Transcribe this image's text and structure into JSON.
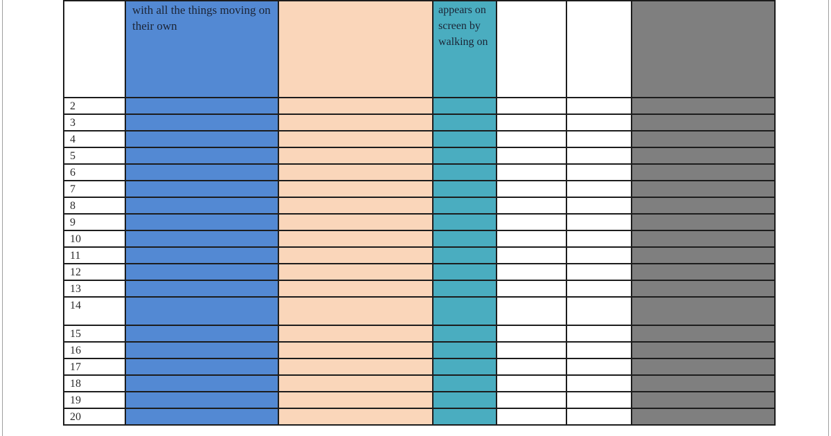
{
  "table": {
    "headers": {
      "num": "",
      "col_blue": "with all the things moving on their own",
      "col_orange": "",
      "col_teal": "appears on screen by walking on",
      "col_white1": "",
      "col_white2": "",
      "col_gray": ""
    },
    "row_numbers": [
      "2",
      "3",
      "4",
      "5",
      "6",
      "7",
      "8",
      "9",
      "10",
      "11",
      "12",
      "13",
      "14",
      "15",
      "16",
      "17",
      "18",
      "19",
      "20"
    ],
    "tall_row_number": "14"
  },
  "colors": {
    "blue": "#5389D3",
    "orange": "#FAD6BA",
    "teal": "#4AADC0",
    "gray": "#7F7F7F",
    "border": "#1c1c1c",
    "page_edge": "#9e9e9e"
  }
}
